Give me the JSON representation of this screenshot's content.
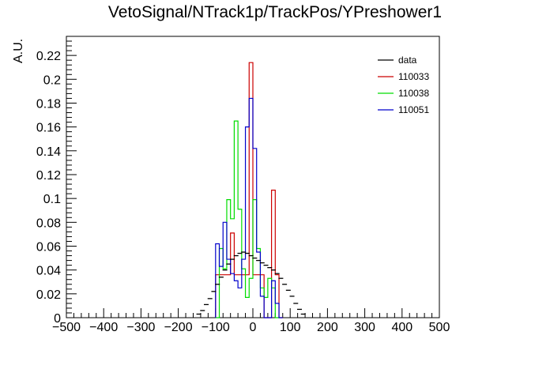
{
  "chart_data": {
    "type": "histogram",
    "title": "VetoSignal/NTrack1p/TrackPos/YPreshower1",
    "xlabel": "",
    "ylabel": "A.U.",
    "xlim": [
      -500,
      500
    ],
    "ylim": [
      0,
      0.236
    ],
    "bin_width": 10,
    "x_ticks": [
      -500,
      -400,
      -300,
      -200,
      -100,
      0,
      100,
      200,
      300,
      400,
      500
    ],
    "y_ticks": [
      0,
      0.02,
      0.04,
      0.06,
      0.08,
      0.1,
      0.12,
      0.14,
      0.16,
      0.18,
      0.2,
      0.22
    ],
    "x_tick_labels": [
      "−500",
      "−400",
      "−300",
      "−200",
      "−100",
      "0",
      "100",
      "200",
      "300",
      "400",
      "500"
    ],
    "y_tick_labels": [
      "0",
      "0.02",
      "0.04",
      "0.06",
      "0.08",
      "0.1",
      "0.12",
      "0.14",
      "0.16",
      "0.18",
      "0.2",
      "0.22"
    ],
    "legend_position": "top-right",
    "series": [
      {
        "name": "data",
        "color": "#000000",
        "style": "markers",
        "bin_starts": [
          -150,
          -140,
          -130,
          -120,
          -110,
          -100,
          -90,
          -80,
          -70,
          -60,
          -50,
          -40,
          -30,
          -20,
          -10,
          0,
          10,
          20,
          30,
          40,
          50,
          60,
          70,
          80,
          90,
          100,
          110,
          120,
          130
        ],
        "values": [
          0.003,
          0.006,
          0.011,
          0.016,
          0.022,
          0.028,
          0.034,
          0.04,
          0.045,
          0.049,
          0.052,
          0.054,
          0.055,
          0.054,
          0.052,
          0.05,
          0.048,
          0.046,
          0.044,
          0.042,
          0.04,
          0.037,
          0.033,
          0.028,
          0.023,
          0.018,
          0.012,
          0.007,
          0.003
        ]
      },
      {
        "name": "110033",
        "color": "#cc0000",
        "style": "step",
        "bin_starts": [
          -100,
          -90,
          -80,
          -70,
          -60,
          -50,
          -40,
          -30,
          -20,
          -10,
          0,
          10,
          20,
          30,
          40,
          50,
          60,
          70
        ],
        "values": [
          0.036,
          0.036,
          0.036,
          0.036,
          0.071,
          0.036,
          0.036,
          0.036,
          0.036,
          0.214,
          0.036,
          0.036,
          0.036,
          0.0,
          0.0,
          0.107,
          0.036,
          0.0
        ]
      },
      {
        "name": "110038",
        "color": "#00dd00",
        "style": "step",
        "bin_starts": [
          -100,
          -90,
          -80,
          -70,
          -60,
          -50,
          -40,
          -30,
          -20,
          -10,
          0,
          10,
          20,
          30,
          40,
          50,
          60
        ],
        "values": [
          0.0,
          0.058,
          0.041,
          0.099,
          0.083,
          0.165,
          0.091,
          0.041,
          0.017,
          0.033,
          0.099,
          0.058,
          0.025,
          0.017,
          0.033,
          0.025,
          0.0
        ]
      },
      {
        "name": "110051",
        "color": "#0000cc",
        "style": "step",
        "bin_starts": [
          -100,
          -90,
          -80,
          -70,
          -60,
          -50,
          -40,
          -30,
          -20,
          -10,
          0,
          10,
          20,
          30,
          40,
          50,
          60,
          70
        ],
        "values": [
          0.062,
          0.043,
          0.08,
          0.049,
          0.037,
          0.031,
          0.025,
          0.049,
          0.16,
          0.184,
          0.142,
          0.055,
          0.018,
          0.0,
          0.0,
          0.031,
          0.012,
          0.0
        ]
      }
    ]
  }
}
